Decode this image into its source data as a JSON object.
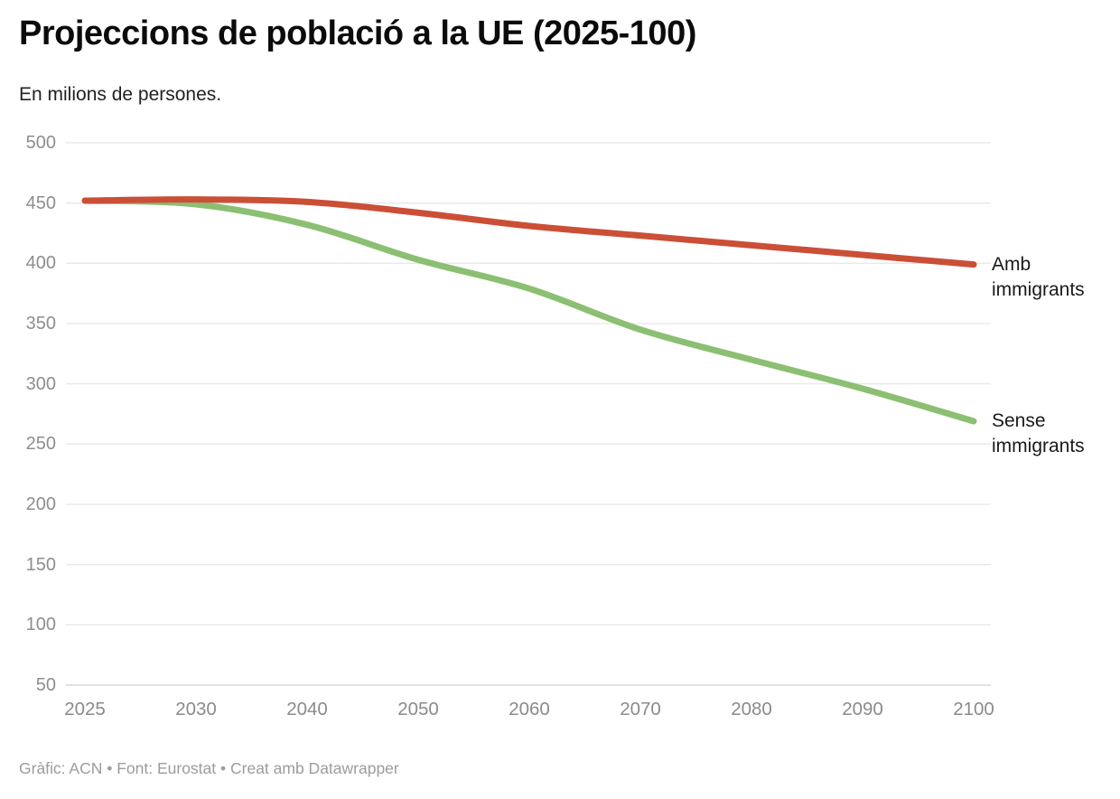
{
  "header": {
    "title": "Projeccions de població a la UE (2025-100)",
    "subtitle": "En milions de persones."
  },
  "footer": {
    "text": "Gràfic: ACN • Font: Eurostat • Creat amb Datawrapper"
  },
  "chart_data": {
    "type": "line",
    "title": "Projeccions de població a la UE (2025-100)",
    "subtitle": "En milions de persones.",
    "xlabel": "",
    "ylabel": "",
    "categories": [
      "2025",
      "2030",
      "2040",
      "2050",
      "2060",
      "2070",
      "2080",
      "2090",
      "2100"
    ],
    "series": [
      {
        "name": "Amb immigrants",
        "label_lines": [
          "Amb",
          "immigrants"
        ],
        "color": "#cb4f36",
        "values": [
          452,
          453,
          451,
          442,
          431,
          423,
          415,
          407,
          399
        ]
      },
      {
        "name": "Sense immigrants",
        "label_lines": [
          "Sense",
          "immigrants"
        ],
        "color": "#8bbf72",
        "values": [
          452,
          449,
          432,
          403,
          379,
          345,
          320,
          296,
          269
        ]
      }
    ],
    "y_ticks": [
      500,
      450,
      400,
      350,
      300,
      250,
      200,
      150,
      100,
      50
    ],
    "ylim": [
      50,
      500
    ],
    "grid": true,
    "legend_position": "right-of-line-ends"
  }
}
